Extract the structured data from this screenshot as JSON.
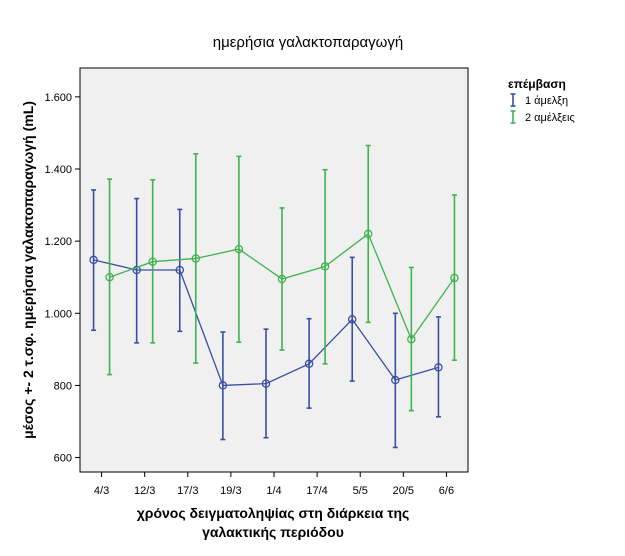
{
  "chart_data": {
    "type": "line",
    "title": "ημερήσια γαλακτοπαραγωγή",
    "xlabel": [
      "χρόνος δειγματοληψίας στη διάρκεια της",
      "γαλακτικής περιόδου"
    ],
    "ylabel": "μέσος +- 2 τ.σφ. ημερήσια γαλακτοπαραγωγή (mL)",
    "categories": [
      "4/3",
      "12/3",
      "17/3",
      "19/3",
      "1/4",
      "17/4",
      "5/5",
      "20/5",
      "6/6"
    ],
    "ylim": [
      560,
      1680
    ],
    "yticks": [
      600,
      800,
      1000,
      1200,
      1400,
      1600
    ],
    "ytick_labels": [
      "600",
      "800",
      "1.000",
      "1.200",
      "1.400",
      "1.600"
    ],
    "legend_title": "επέμβαση",
    "legend_position": "top-right, outside plot",
    "grid": false,
    "plot_background": "#f0f0f0",
    "series": [
      {
        "name": "1 άμελξη",
        "color": "#3a4fa2",
        "values": [
          1148,
          1120,
          1120,
          800,
          805,
          860,
          983,
          815,
          850
        ],
        "upper": [
          1342,
          1318,
          1288,
          948,
          956,
          985,
          1155,
          1000,
          990
        ],
        "lower": [
          953,
          918,
          950,
          650,
          655,
          737,
          812,
          628,
          713
        ]
      },
      {
        "name": "2 αμέλξεις",
        "color": "#3fb34f",
        "values": [
          1100,
          1143,
          1152,
          1178,
          1095,
          1130,
          1220,
          928,
          1098
        ],
        "upper": [
          1372,
          1370,
          1442,
          1435,
          1292,
          1398,
          1465,
          1127,
          1328
        ],
        "lower": [
          830,
          918,
          862,
          920,
          898,
          860,
          975,
          730,
          870
        ]
      }
    ]
  }
}
